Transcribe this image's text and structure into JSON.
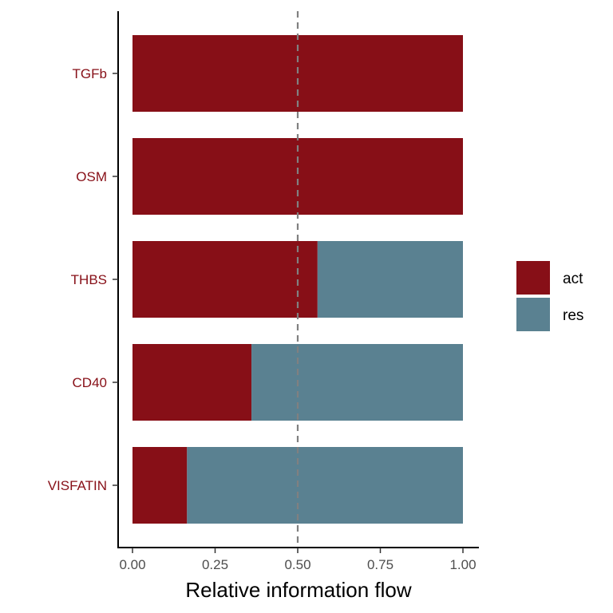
{
  "chart_data": {
    "type": "bar",
    "orientation": "horizontal",
    "stacked": true,
    "title": "",
    "xlabel": "Relative information flow",
    "ylabel": "",
    "xlim": [
      0,
      1
    ],
    "x_ticks": [
      0.0,
      0.25,
      0.5,
      0.75,
      1.0
    ],
    "x_tick_labels": [
      "0.00",
      "0.25",
      "0.50",
      "0.75",
      "1.00"
    ],
    "categories": [
      "TGFb",
      "OSM",
      "THBS",
      "CD40",
      "VISFATIN"
    ],
    "series": [
      {
        "name": "act",
        "color": "#870F17",
        "values": [
          1.0,
          1.0,
          0.56,
          0.36,
          0.165
        ]
      },
      {
        "name": "res",
        "color": "#5A8191",
        "values": [
          0.0,
          0.0,
          0.44,
          0.64,
          0.835
        ]
      }
    ],
    "reference_line": {
      "x": 0.5,
      "style": "dashed",
      "color": "#808080"
    },
    "category_label_color": "#870F17",
    "legend": {
      "position": "right",
      "entries": [
        "act",
        "res"
      ]
    },
    "grid": false
  }
}
